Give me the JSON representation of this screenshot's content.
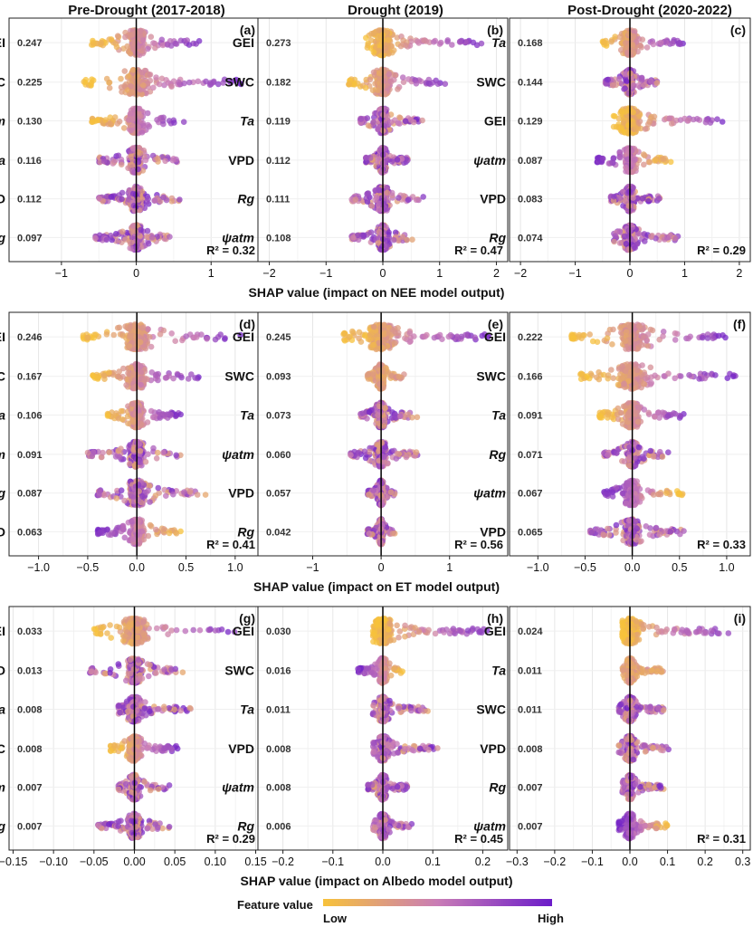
{
  "column_titles": [
    "Pre-Drought (2017-2018)",
    "Drought (2019)",
    "Post-Drought (2020-2022)"
  ],
  "row_xlabels": [
    "SHAP value (impact on NEE model output)",
    "SHAP value (impact on ET model output)",
    "SHAP value (impact on Albedo model output)"
  ],
  "legend": {
    "title": "Feature value",
    "low": "Low",
    "high": "High",
    "low_color": "#f7c23b",
    "mid_color": "#c97cb6",
    "high_color": "#6b1cc9"
  },
  "chart_data": [
    {
      "type": "scatter",
      "subtype": "shap-beeswarm",
      "panel": "(a)",
      "target": "NEE",
      "period": "Pre-Drought (2017-2018)",
      "xlim": [
        -1.7,
        1.65
      ],
      "xticks": [
        -1,
        0,
        1
      ],
      "xtick_labels": [
        "−1",
        "0",
        "1"
      ],
      "r2": "R² = 0.32",
      "features": [
        {
          "name": "GEI",
          "italic": false,
          "importance": "0.247",
          "min": -0.6,
          "max": 0.85,
          "low_side": "neg"
        },
        {
          "name": "SWC",
          "italic": false,
          "importance": "0.225",
          "min": -0.7,
          "max": 1.4,
          "low_side": "neg"
        },
        {
          "name": "ψatm",
          "italic": true,
          "importance": "0.130",
          "min": -0.6,
          "max": 0.65,
          "low_side": "neg"
        },
        {
          "name": "Ta",
          "italic": true,
          "importance": "0.116",
          "min": -0.5,
          "max": 0.6,
          "low_side": "mixed"
        },
        {
          "name": "VPD",
          "italic": false,
          "importance": "0.112",
          "min": -0.5,
          "max": 0.6,
          "low_side": "mixed"
        },
        {
          "name": "Rg",
          "italic": true,
          "importance": "0.097",
          "min": -0.55,
          "max": 0.45,
          "low_side": "mixed"
        }
      ]
    },
    {
      "type": "scatter",
      "subtype": "shap-beeswarm",
      "panel": "(b)",
      "target": "NEE",
      "period": "Drought (2019)",
      "xlim": [
        -2.2,
        2.2
      ],
      "xticks": [
        -2,
        -1,
        0,
        1,
        2
      ],
      "xtick_labels": [
        "−2",
        "−1",
        "0",
        "1",
        "2"
      ],
      "r2": "R² = 0.47",
      "features": [
        {
          "name": "GEI",
          "italic": false,
          "importance": "0.273",
          "min": -0.3,
          "max": 1.75,
          "low_side": "neg"
        },
        {
          "name": "SWC",
          "italic": false,
          "importance": "0.182",
          "min": -0.6,
          "max": 1.1,
          "low_side": "neg"
        },
        {
          "name": "Ta",
          "italic": true,
          "importance": "0.119",
          "min": -0.4,
          "max": 0.7,
          "low_side": "mixed"
        },
        {
          "name": "VPD",
          "italic": false,
          "importance": "0.112",
          "min": -0.3,
          "max": 0.45,
          "low_side": "mixed"
        },
        {
          "name": "Rg",
          "italic": true,
          "importance": "0.111",
          "min": -0.55,
          "max": 0.75,
          "low_side": "mixed"
        },
        {
          "name": "ψatm",
          "italic": true,
          "importance": "0.108",
          "min": -0.55,
          "max": 0.55,
          "low_side": "mixed"
        }
      ]
    },
    {
      "type": "scatter",
      "subtype": "shap-beeswarm",
      "panel": "(c)",
      "target": "NEE",
      "period": "Post-Drought (2020-2022)",
      "xlim": [
        -2.2,
        2.2
      ],
      "xticks": [
        -2,
        -1,
        0,
        1,
        2
      ],
      "xtick_labels": [
        "−2",
        "−1",
        "0",
        "1",
        "2"
      ],
      "r2": "R² = 0.29",
      "features": [
        {
          "name": "Ta",
          "italic": true,
          "importance": "0.168",
          "min": -0.5,
          "max": 1.0,
          "low_side": "neg"
        },
        {
          "name": "SWC",
          "italic": false,
          "importance": "0.144",
          "min": -0.45,
          "max": 0.5,
          "low_side": "mixed"
        },
        {
          "name": "GEI",
          "italic": false,
          "importance": "0.129",
          "min": -0.3,
          "max": 1.8,
          "low_side": "neg"
        },
        {
          "name": "ψatm",
          "italic": true,
          "importance": "0.087",
          "min": -0.6,
          "max": 0.75,
          "low_side": "pos"
        },
        {
          "name": "VPD",
          "italic": false,
          "importance": "0.083",
          "min": -0.35,
          "max": 0.55,
          "low_side": "mixed"
        },
        {
          "name": "Rg",
          "italic": true,
          "importance": "0.074",
          "min": -0.3,
          "max": 0.95,
          "low_side": "mixed"
        }
      ]
    },
    {
      "type": "scatter",
      "subtype": "shap-beeswarm",
      "panel": "(d)",
      "target": "ET",
      "period": "Pre-Drought (2017-2018)",
      "xlim": [
        -1.3,
        1.25
      ],
      "xticks": [
        -1.0,
        -0.5,
        0.0,
        0.5,
        1.0
      ],
      "xtick_labels": [
        "−1.0",
        "−0.5",
        "0.0",
        "0.5",
        "1.0"
      ],
      "r2": "R² = 0.41",
      "features": [
        {
          "name": "GEI",
          "italic": false,
          "importance": "0.246",
          "min": -0.55,
          "max": 1.1,
          "low_side": "neg"
        },
        {
          "name": "SWC",
          "italic": false,
          "importance": "0.167",
          "min": -0.45,
          "max": 0.65,
          "low_side": "neg"
        },
        {
          "name": "Ta",
          "italic": true,
          "importance": "0.106",
          "min": -0.3,
          "max": 0.45,
          "low_side": "neg"
        },
        {
          "name": "ψatm",
          "italic": true,
          "importance": "0.091",
          "min": -0.5,
          "max": 0.45,
          "low_side": "mixed"
        },
        {
          "name": "Rg",
          "italic": true,
          "importance": "0.087",
          "min": -0.4,
          "max": 0.7,
          "low_side": "mixed"
        },
        {
          "name": "VPD",
          "italic": false,
          "importance": "0.063",
          "min": -0.4,
          "max": 0.45,
          "low_side": "pos"
        }
      ]
    },
    {
      "type": "scatter",
      "subtype": "shap-beeswarm",
      "panel": "(e)",
      "target": "ET",
      "period": "Drought (2019)",
      "xlim": [
        -1.8,
        1.85
      ],
      "xticks": [
        -1,
        0,
        1
      ],
      "xtick_labels": [
        "−1",
        "0",
        "1"
      ],
      "r2": "R² = 0.56",
      "features": [
        {
          "name": "GEI",
          "italic": false,
          "importance": "0.245",
          "min": -0.55,
          "max": 1.6,
          "low_side": "neg"
        },
        {
          "name": "SWC",
          "italic": false,
          "importance": "0.093",
          "min": -0.2,
          "max": 0.35,
          "low_side": "all"
        },
        {
          "name": "Ta",
          "italic": true,
          "importance": "0.073",
          "min": -0.3,
          "max": 0.55,
          "low_side": "mixed"
        },
        {
          "name": "ψatm",
          "italic": true,
          "importance": "0.060",
          "min": -0.45,
          "max": 0.55,
          "low_side": "mixed"
        },
        {
          "name": "VPD",
          "italic": false,
          "importance": "0.057",
          "min": -0.2,
          "max": 0.2,
          "low_side": "mixed"
        },
        {
          "name": "Rg",
          "italic": true,
          "importance": "0.042",
          "min": -0.2,
          "max": 0.2,
          "low_side": "mixed"
        }
      ]
    },
    {
      "type": "scatter",
      "subtype": "shap-beeswarm",
      "panel": "(f)",
      "target": "ET",
      "period": "Post-Drought (2020-2022)",
      "xlim": [
        -1.3,
        1.25
      ],
      "xticks": [
        -1.0,
        -0.5,
        0.0,
        0.5,
        1.0
      ],
      "xtick_labels": [
        "−1.0",
        "−0.5",
        "0.0",
        "0.5",
        "1.0"
      ],
      "r2": "R² = 0.33",
      "features": [
        {
          "name": "GEI",
          "italic": false,
          "importance": "0.222",
          "min": -0.65,
          "max": 1.1,
          "low_side": "neg"
        },
        {
          "name": "SWC",
          "italic": false,
          "importance": "0.166",
          "min": -0.55,
          "max": 1.1,
          "low_side": "neg"
        },
        {
          "name": "Ta",
          "italic": true,
          "importance": "0.091",
          "min": -0.35,
          "max": 0.6,
          "low_side": "neg"
        },
        {
          "name": "Rg",
          "italic": true,
          "importance": "0.071",
          "min": -0.3,
          "max": 0.4,
          "low_side": "mixed"
        },
        {
          "name": "ψatm",
          "italic": true,
          "importance": "0.067",
          "min": -0.3,
          "max": 0.55,
          "low_side": "pos"
        },
        {
          "name": "VPD",
          "italic": false,
          "importance": "0.065",
          "min": -0.45,
          "max": 0.55,
          "low_side": "mixed"
        }
      ]
    },
    {
      "type": "scatter",
      "subtype": "shap-beeswarm",
      "panel": "(g)",
      "target": "Albedo",
      "period": "Pre-Drought (2017-2018)",
      "xlim": [
        -0.155,
        0.155
      ],
      "xticks": [
        -0.15,
        -0.1,
        -0.05,
        0.0,
        0.05,
        0.1,
        0.15
      ],
      "xtick_labels": [
        "−0.15",
        "−0.10",
        "−0.05",
        "0.00",
        "0.05",
        "0.10",
        "0.15"
      ],
      "r2": "R² = 0.29",
      "features": [
        {
          "name": "GEI",
          "italic": false,
          "importance": "0.033",
          "min": -0.05,
          "max": 0.125,
          "low_side": "neg"
        },
        {
          "name": "VPD",
          "italic": false,
          "importance": "0.013",
          "min": -0.055,
          "max": 0.06,
          "low_side": "mixed"
        },
        {
          "name": "Ta",
          "italic": true,
          "importance": "0.008",
          "min": -0.02,
          "max": 0.07,
          "low_side": "mixed"
        },
        {
          "name": "SWC",
          "italic": false,
          "importance": "0.008",
          "min": -0.03,
          "max": 0.055,
          "low_side": "neg"
        },
        {
          "name": "ψatm",
          "italic": true,
          "importance": "0.007",
          "min": -0.02,
          "max": 0.045,
          "low_side": "mixed"
        },
        {
          "name": "Rg",
          "italic": true,
          "importance": "0.007",
          "min": -0.045,
          "max": 0.045,
          "low_side": "mixed"
        }
      ]
    },
    {
      "type": "scatter",
      "subtype": "shap-beeswarm",
      "panel": "(h)",
      "target": "Albedo",
      "period": "Drought (2019)",
      "xlim": [
        -0.25,
        0.25
      ],
      "xticks": [
        -0.2,
        -0.1,
        0.0,
        0.1,
        0.2
      ],
      "xtick_labels": [
        "−0.2",
        "−0.1",
        "0.0",
        "0.1",
        "0.2"
      ],
      "r2": "R² = 0.45",
      "features": [
        {
          "name": "GEI",
          "italic": false,
          "importance": "0.030",
          "min": -0.02,
          "max": 0.21,
          "low_side": "neg"
        },
        {
          "name": "SWC",
          "italic": false,
          "importance": "0.016",
          "min": -0.05,
          "max": 0.04,
          "low_side": "pos"
        },
        {
          "name": "Ta",
          "italic": true,
          "importance": "0.011",
          "min": -0.02,
          "max": 0.09,
          "low_side": "mixed"
        },
        {
          "name": "VPD",
          "italic": false,
          "importance": "0.008",
          "min": -0.02,
          "max": 0.11,
          "low_side": "mixed"
        },
        {
          "name": "ψatm",
          "italic": true,
          "importance": "0.008",
          "min": -0.03,
          "max": 0.05,
          "low_side": "mixed"
        },
        {
          "name": "Rg",
          "italic": true,
          "importance": "0.006",
          "min": -0.02,
          "max": 0.06,
          "low_side": "mixed"
        }
      ]
    },
    {
      "type": "scatter",
      "subtype": "shap-beeswarm",
      "panel": "(i)",
      "target": "Albedo",
      "period": "Post-Drought (2020-2022)",
      "xlim": [
        -0.32,
        0.32
      ],
      "xticks": [
        -0.3,
        -0.2,
        -0.1,
        0.0,
        0.1,
        0.2,
        0.3
      ],
      "xtick_labels": [
        "−0.3",
        "−0.2",
        "−0.1",
        "0.0",
        "0.1",
        "0.2",
        "0.3"
      ],
      "r2": "R² = 0.31",
      "features": [
        {
          "name": "GEI",
          "italic": false,
          "importance": "0.024",
          "min": -0.02,
          "max": 0.27,
          "low_side": "neg"
        },
        {
          "name": "Ta",
          "italic": true,
          "importance": "0.011",
          "min": -0.02,
          "max": 0.09,
          "low_side": "all"
        },
        {
          "name": "SWC",
          "italic": false,
          "importance": "0.011",
          "min": -0.03,
          "max": 0.09,
          "low_side": "mixed"
        },
        {
          "name": "VPD",
          "italic": false,
          "importance": "0.008",
          "min": -0.03,
          "max": 0.11,
          "low_side": "mixed"
        },
        {
          "name": "Rg",
          "italic": true,
          "importance": "0.007",
          "min": -0.02,
          "max": 0.09,
          "low_side": "mixed"
        },
        {
          "name": "ψatm",
          "italic": true,
          "importance": "0.007",
          "min": -0.03,
          "max": 0.1,
          "low_side": "pos"
        }
      ]
    }
  ]
}
